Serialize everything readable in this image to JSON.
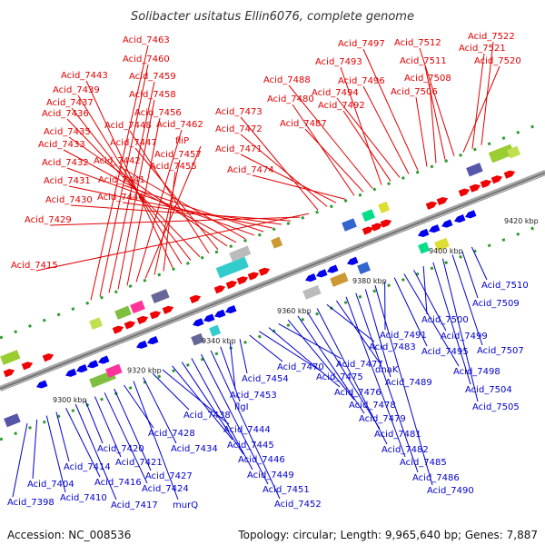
{
  "title": "Solibacter usitatus Ellin6076, complete genome",
  "footer": {
    "accession": "Accession: NC_008536",
    "topology": "Topology: circular; Length: 9,965,640 bp; Genes: 7,887"
  },
  "ticks": [
    "9300 kbp",
    "9320 kbp",
    "9340 kbp",
    "9360 kbp",
    "9380 kbp",
    "9400 kbp",
    "9420 kbp"
  ],
  "top_labels": [
    "Acid_7463",
    "Acid_7460",
    "Acid_7459",
    "Acid_7458",
    "Acid_7456",
    "Acid_7462",
    "fliP",
    "Acid_7457",
    "Acid_7455",
    "Acid_7443",
    "Acid_7439",
    "Acid_7437",
    "Acid_7436",
    "Acid_7448",
    "Acid_7447",
    "Acid_7435",
    "Acid_7433",
    "Acid_7442",
    "Acid_7432",
    "Acid_7441",
    "Acid_7431",
    "Acid_7440",
    "Acid_7430",
    "Acid_7429",
    "Acid_7415",
    "Acid_7473",
    "Acid_7472",
    "Acid_7471",
    "Acid_7474",
    "Acid_7480",
    "Acid_7487",
    "Acid_7488",
    "Acid_7493",
    "Acid_7492",
    "Acid_7494",
    "Acid_7496",
    "Acid_7497",
    "Acid_7506",
    "Acid_7508",
    "Acid_7511",
    "Acid_7512",
    "Acid_7520",
    "Acid_7521",
    "Acid_7522"
  ],
  "bottom_labels": [
    "Acid_7398",
    "Acid_7404",
    "Acid_7410",
    "Acid_7414",
    "Acid_7416",
    "Acid_7417",
    "Acid_7420",
    "Acid_7421",
    "Acid_7424",
    "Acid_7427",
    "Acid_7428",
    "murQ",
    "Acid_7434",
    "Acid_7438",
    "Acid_7444",
    "Acid_7445",
    "Acid_7446",
    "Acid_7449",
    "Acid_7451",
    "Acid_7452",
    "flgI",
    "Acid_7453",
    "Acid_7454",
    "Acid_7470",
    "Acid_7475",
    "Acid_7476",
    "Acid_7477",
    "Acid_7478",
    "Acid_7479",
    "Acid_7481",
    "Acid_7482",
    "Acid_7483",
    "dnaK",
    "Acid_7485",
    "Acid_7486",
    "Acid_7489",
    "Acid_7490",
    "Acid_7491",
    "Acid_7495",
    "Acid_7498",
    "Acid_7499",
    "Acid_7500",
    "Acid_7504",
    "Acid_7505",
    "Acid_7507",
    "Acid_7509",
    "Acid_7510"
  ]
}
